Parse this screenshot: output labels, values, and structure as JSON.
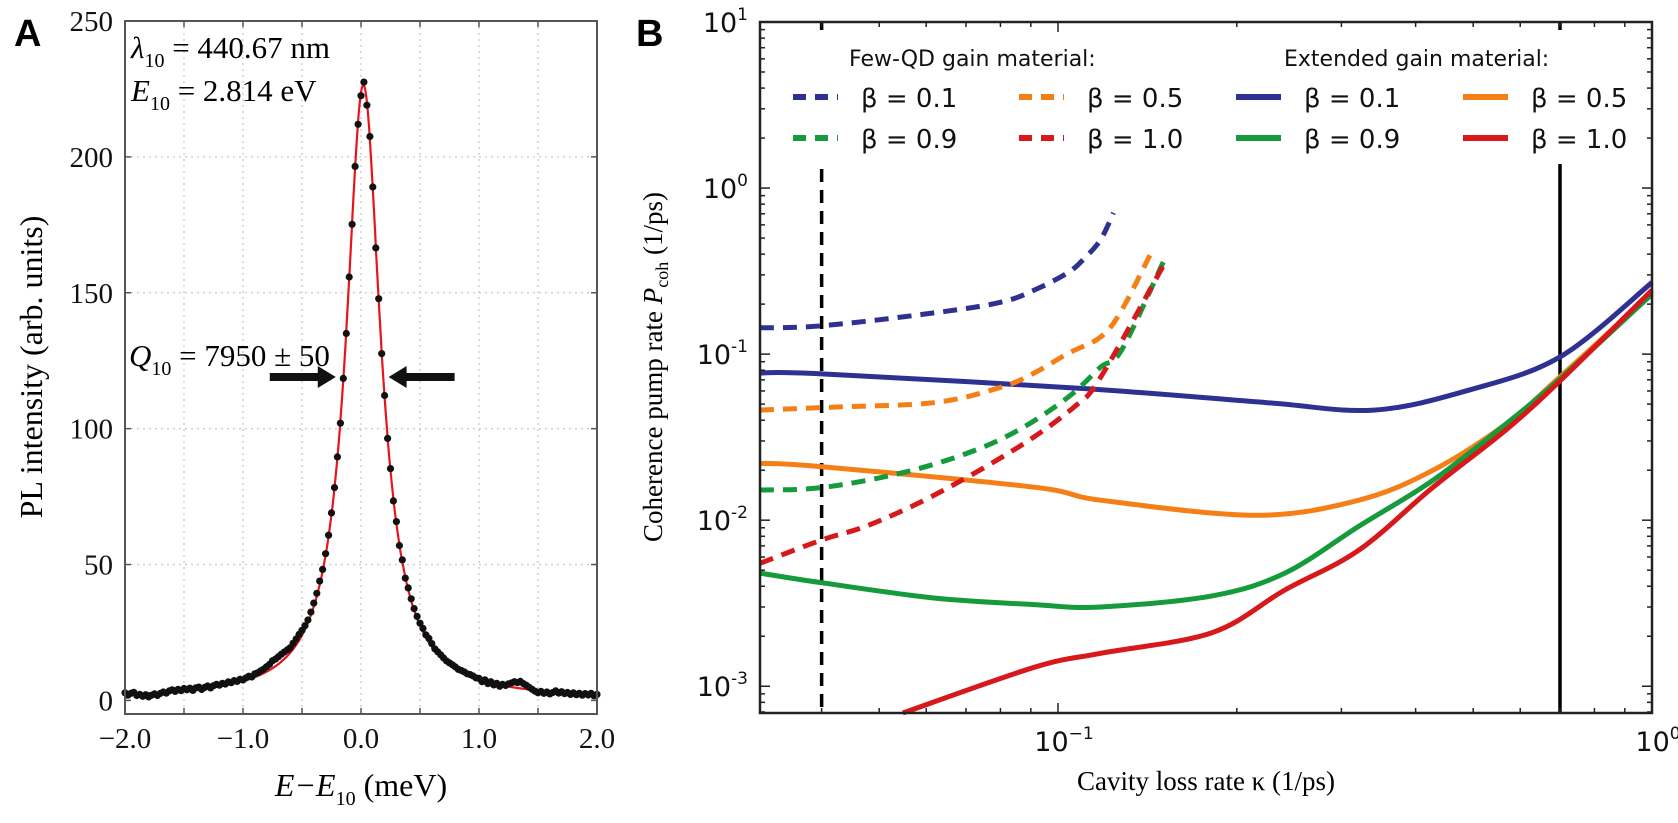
{
  "panel_labels": [
    "A",
    "B"
  ],
  "chart_data": [
    {
      "panel": "A",
      "type": "scatter",
      "xlabel": {
        "main": "E−E",
        "sub": "10",
        "rest": " (meV)"
      },
      "ylabel": "PL intensity (arb. units)",
      "xlim": [
        -2.0,
        2.0
      ],
      "ylim": [
        -5,
        250
      ],
      "grid": true,
      "xticks": [
        -2.0,
        -1.0,
        0.0,
        1.0,
        2.0
      ],
      "xtick_labels": [
        "−2.0",
        "−1.0",
        "0.0",
        "1.0",
        "2.0"
      ],
      "yticks": [
        0,
        50,
        100,
        150,
        200,
        250
      ],
      "ytick_labels": [
        "0",
        "50",
        "100",
        "150",
        "200",
        "250"
      ],
      "annotations": {
        "wavelength": {
          "symbol": "λ",
          "sub": "10",
          "rest": " = 440.67 nm"
        },
        "energy": {
          "symbol": "E",
          "sub": "10",
          "rest": " = 2.814 eV"
        },
        "q_factor": {
          "symbol": "Q",
          "sub": "10",
          "rest": " = 7950 ± 50"
        }
      },
      "data_series": {
        "x_start": -2.0,
        "x_step": 0.025,
        "color": "#111111",
        "y": [
          2.8,
          1.9,
          2.6,
          3.0,
          1.8,
          2.2,
          1.5,
          2.1,
          1.3,
          1.9,
          2.4,
          1.8,
          2.6,
          3.1,
          2.7,
          3.5,
          3.9,
          3.3,
          4.1,
          3.6,
          4.4,
          3.9,
          4.5,
          3.7,
          4.6,
          4.9,
          4.0,
          4.8,
          5.3,
          4.6,
          5.4,
          5.9,
          5.6,
          6.3,
          6.0,
          6.8,
          6.5,
          7.3,
          7.0,
          7.8,
          7.5,
          8.3,
          8.9,
          8.6,
          9.8,
          10.2,
          10.9,
          11.5,
          12.4,
          13.3,
          14.6,
          15.2,
          16.1,
          17.0,
          17.8,
          18.6,
          19.4,
          21.0,
          22.6,
          24.3,
          25.8,
          27.5,
          29.6,
          32.5,
          35.8,
          39.4,
          43.9,
          48.2,
          54.0,
          60.8,
          69.0,
          78.3,
          89.6,
          102.0,
          118.5,
          135.0,
          155.8,
          175.2,
          196.5,
          212.0,
          222.5,
          227.5,
          219.0,
          207.5,
          188.9,
          166.5,
          147.8,
          127.6,
          112.2,
          96.4,
          85.3,
          73.4,
          65.8,
          57.0,
          51.7,
          45.0,
          41.4,
          37.4,
          33.8,
          30.9,
          28.4,
          26.5,
          24.1,
          22.8,
          20.9,
          19.0,
          17.9,
          16.8,
          15.6,
          14.5,
          13.8,
          13.1,
          12.3,
          11.4,
          11.0,
          10.5,
          9.8,
          9.5,
          9.0,
          8.3,
          8.1,
          6.9,
          7.6,
          6.2,
          6.9,
          5.7,
          6.3,
          5.2,
          5.9,
          5.5,
          6.1,
          6.4,
          6.9,
          6.5,
          7.0,
          6.2,
          5.6,
          4.8,
          4.1,
          3.4,
          2.8,
          3.3,
          2.6,
          3.1,
          2.4,
          2.9,
          3.5,
          2.7,
          3.2,
          2.5,
          2.9,
          2.2,
          2.8,
          2.1,
          2.6,
          1.9,
          2.5,
          2.0,
          2.6,
          1.7,
          2.2
        ]
      },
      "fit_curve": {
        "model": "lorentzian",
        "center": 0.02,
        "amplitude": 226,
        "fwhm": 0.354,
        "offset": 0.5,
        "color": "#e8141c"
      },
      "fwhm_arrows": {
        "level": 119,
        "left_at": -0.18,
        "right_at": 0.2
      }
    },
    {
      "panel": "B",
      "type": "line",
      "xscale": "log",
      "yscale": "log",
      "xlabel": "Cavity loss rate κ (1/ps)",
      "ylabel": {
        "main": "Coherence pump rate ",
        "sym": "P",
        "sub": "coh",
        "rest": " (1/ps)"
      },
      "xlim": [
        0.0315,
        1.0
      ],
      "ylim": [
        0.00069,
        10
      ],
      "xticks": [
        {
          "value": 0.1,
          "base": "10",
          "exp": "−1"
        },
        {
          "value": 1.0,
          "base": "10",
          "exp": "0"
        }
      ],
      "yticks": [
        {
          "value": 10,
          "base": "10",
          "exp": "1"
        },
        {
          "value": 1,
          "base": "10",
          "exp": "0"
        },
        {
          "value": 0.1,
          "base": "10",
          "exp": "-1"
        },
        {
          "value": 0.01,
          "base": "10",
          "exp": "-2"
        },
        {
          "value": 0.001,
          "base": "10",
          "exp": "-3"
        }
      ],
      "legend": {
        "placement": "top",
        "groups": [
          {
            "title": "Few-QD gain material:",
            "entries": [
              0,
              2,
              1,
              3
            ]
          },
          {
            "title": "Extended gain material:",
            "entries": [
              4,
              6,
              5,
              7
            ]
          }
        ]
      },
      "vlines": [
        {
          "x": 0.04,
          "style": "dashed",
          "color": "#000000"
        },
        {
          "x": 0.7,
          "style": "solid",
          "color": "#000000"
        }
      ],
      "series": [
        {
          "name": "β = 0.1",
          "group": "Few-QD",
          "style": "dashed",
          "color": "#2e3192",
          "points": [
            [
              0.0315,
              0.144
            ],
            [
              0.04,
              0.148
            ],
            [
              0.0618,
              0.177
            ],
            [
              0.08,
              0.205
            ],
            [
              0.0912,
              0.243
            ],
            [
              0.104,
              0.31
            ],
            [
              0.111,
              0.38
            ],
            [
              0.118,
              0.49
            ],
            [
              0.124,
              0.71
            ]
          ]
        },
        {
          "name": "β = 0.5",
          "group": "Few-QD",
          "style": "dashed",
          "color": "#f57f17",
          "points": [
            [
              0.0315,
              0.046
            ],
            [
              0.042,
              0.048
            ],
            [
              0.0618,
              0.051
            ],
            [
              0.08,
              0.063
            ],
            [
              0.0912,
              0.077
            ],
            [
              0.104,
              0.101
            ],
            [
              0.118,
              0.127
            ],
            [
              0.128,
              0.184
            ],
            [
              0.145,
              0.44
            ]
          ]
        },
        {
          "name": "β = 0.9",
          "group": "Few-QD",
          "style": "dashed",
          "color": "#159a3c",
          "points": [
            [
              0.0315,
              0.0152
            ],
            [
              0.04,
              0.0157
            ],
            [
              0.0544,
              0.0192
            ],
            [
              0.0705,
              0.0254
            ],
            [
              0.0857,
              0.0348
            ],
            [
              0.104,
              0.055
            ],
            [
              0.118,
              0.0836
            ],
            [
              0.128,
              0.106
            ],
            [
              0.151,
              0.37
            ]
          ]
        },
        {
          "name": "β = 1.0",
          "group": "Few-QD",
          "style": "dashed",
          "color": "#d7191c",
          "points": [
            [
              0.0315,
              0.0055
            ],
            [
              0.04,
              0.0076
            ],
            [
              0.0479,
              0.0093
            ],
            [
              0.0618,
              0.0141
            ],
            [
              0.0857,
              0.0275
            ],
            [
              0.1064,
              0.048
            ],
            [
              0.118,
              0.0727
            ],
            [
              0.151,
              0.35
            ]
          ]
        },
        {
          "name": "β = 0.1",
          "group": "Extended",
          "style": "solid",
          "color": "#2e3192",
          "points": [
            [
              0.0315,
              0.077
            ],
            [
              0.04,
              0.076
            ],
            [
              0.111,
              0.062
            ],
            [
              0.225,
              0.051
            ],
            [
              0.34,
              0.046
            ],
            [
              0.494,
              0.061
            ],
            [
              0.703,
              0.097
            ],
            [
              1.0,
              0.27
            ]
          ]
        },
        {
          "name": "β = 0.5",
          "group": "Extended",
          "style": "solid",
          "color": "#f57f17",
          "points": [
            [
              0.0315,
              0.022
            ],
            [
              0.04,
              0.021
            ],
            [
              0.0912,
              0.0158
            ],
            [
              0.118,
              0.0132
            ],
            [
              0.215,
              0.0107
            ],
            [
              0.321,
              0.0132
            ],
            [
              0.428,
              0.02
            ],
            [
              0.568,
              0.038
            ],
            [
              0.703,
              0.074
            ],
            [
              1.0,
              0.233
            ]
          ]
        },
        {
          "name": "β = 0.9",
          "group": "Extended",
          "style": "solid",
          "color": "#159a3c",
          "points": [
            [
              0.0315,
              0.0048
            ],
            [
              0.04,
              0.0042
            ],
            [
              0.0618,
              0.0034
            ],
            [
              0.0912,
              0.0031
            ],
            [
              0.118,
              0.003
            ],
            [
              0.1816,
              0.0035
            ],
            [
              0.241,
              0.0048
            ],
            [
              0.321,
              0.0092
            ],
            [
              0.428,
              0.0174
            ],
            [
              0.568,
              0.038
            ],
            [
              0.703,
              0.072
            ],
            [
              1.0,
              0.23
            ]
          ]
        },
        {
          "name": "β = 1.0",
          "group": "Extended",
          "style": "solid",
          "color": "#d7191c",
          "points": [
            [
              0.0548,
              0.00069
            ],
            [
              0.0912,
              0.0013
            ],
            [
              0.118,
              0.00158
            ],
            [
              0.1816,
              0.0021
            ],
            [
              0.241,
              0.0038
            ],
            [
              0.321,
              0.0066
            ],
            [
              0.428,
              0.0158
            ],
            [
              0.568,
              0.035
            ],
            [
              0.703,
              0.07
            ],
            [
              1.0,
              0.243
            ]
          ]
        }
      ]
    }
  ]
}
